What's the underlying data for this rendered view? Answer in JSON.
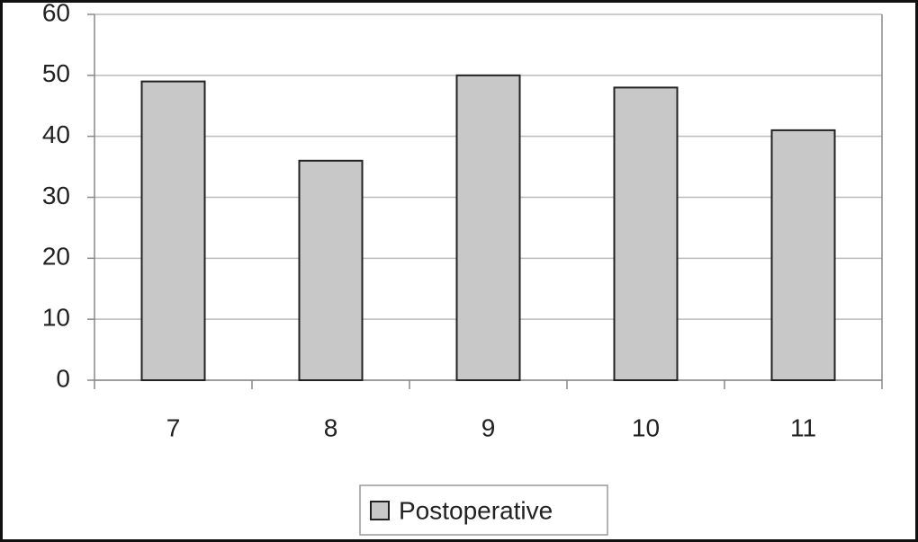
{
  "chart_data": {
    "type": "bar",
    "categories": [
      "7",
      "8",
      "9",
      "10",
      "11"
    ],
    "series": [
      {
        "name": "Postoperative",
        "color": "#c8c8c8",
        "values": [
          49,
          36,
          50,
          48,
          41
        ]
      }
    ],
    "ylim": [
      0,
      60
    ],
    "yticks": [
      0,
      10,
      20,
      30,
      40,
      50,
      60
    ],
    "grid": true,
    "legend": "bottom"
  }
}
